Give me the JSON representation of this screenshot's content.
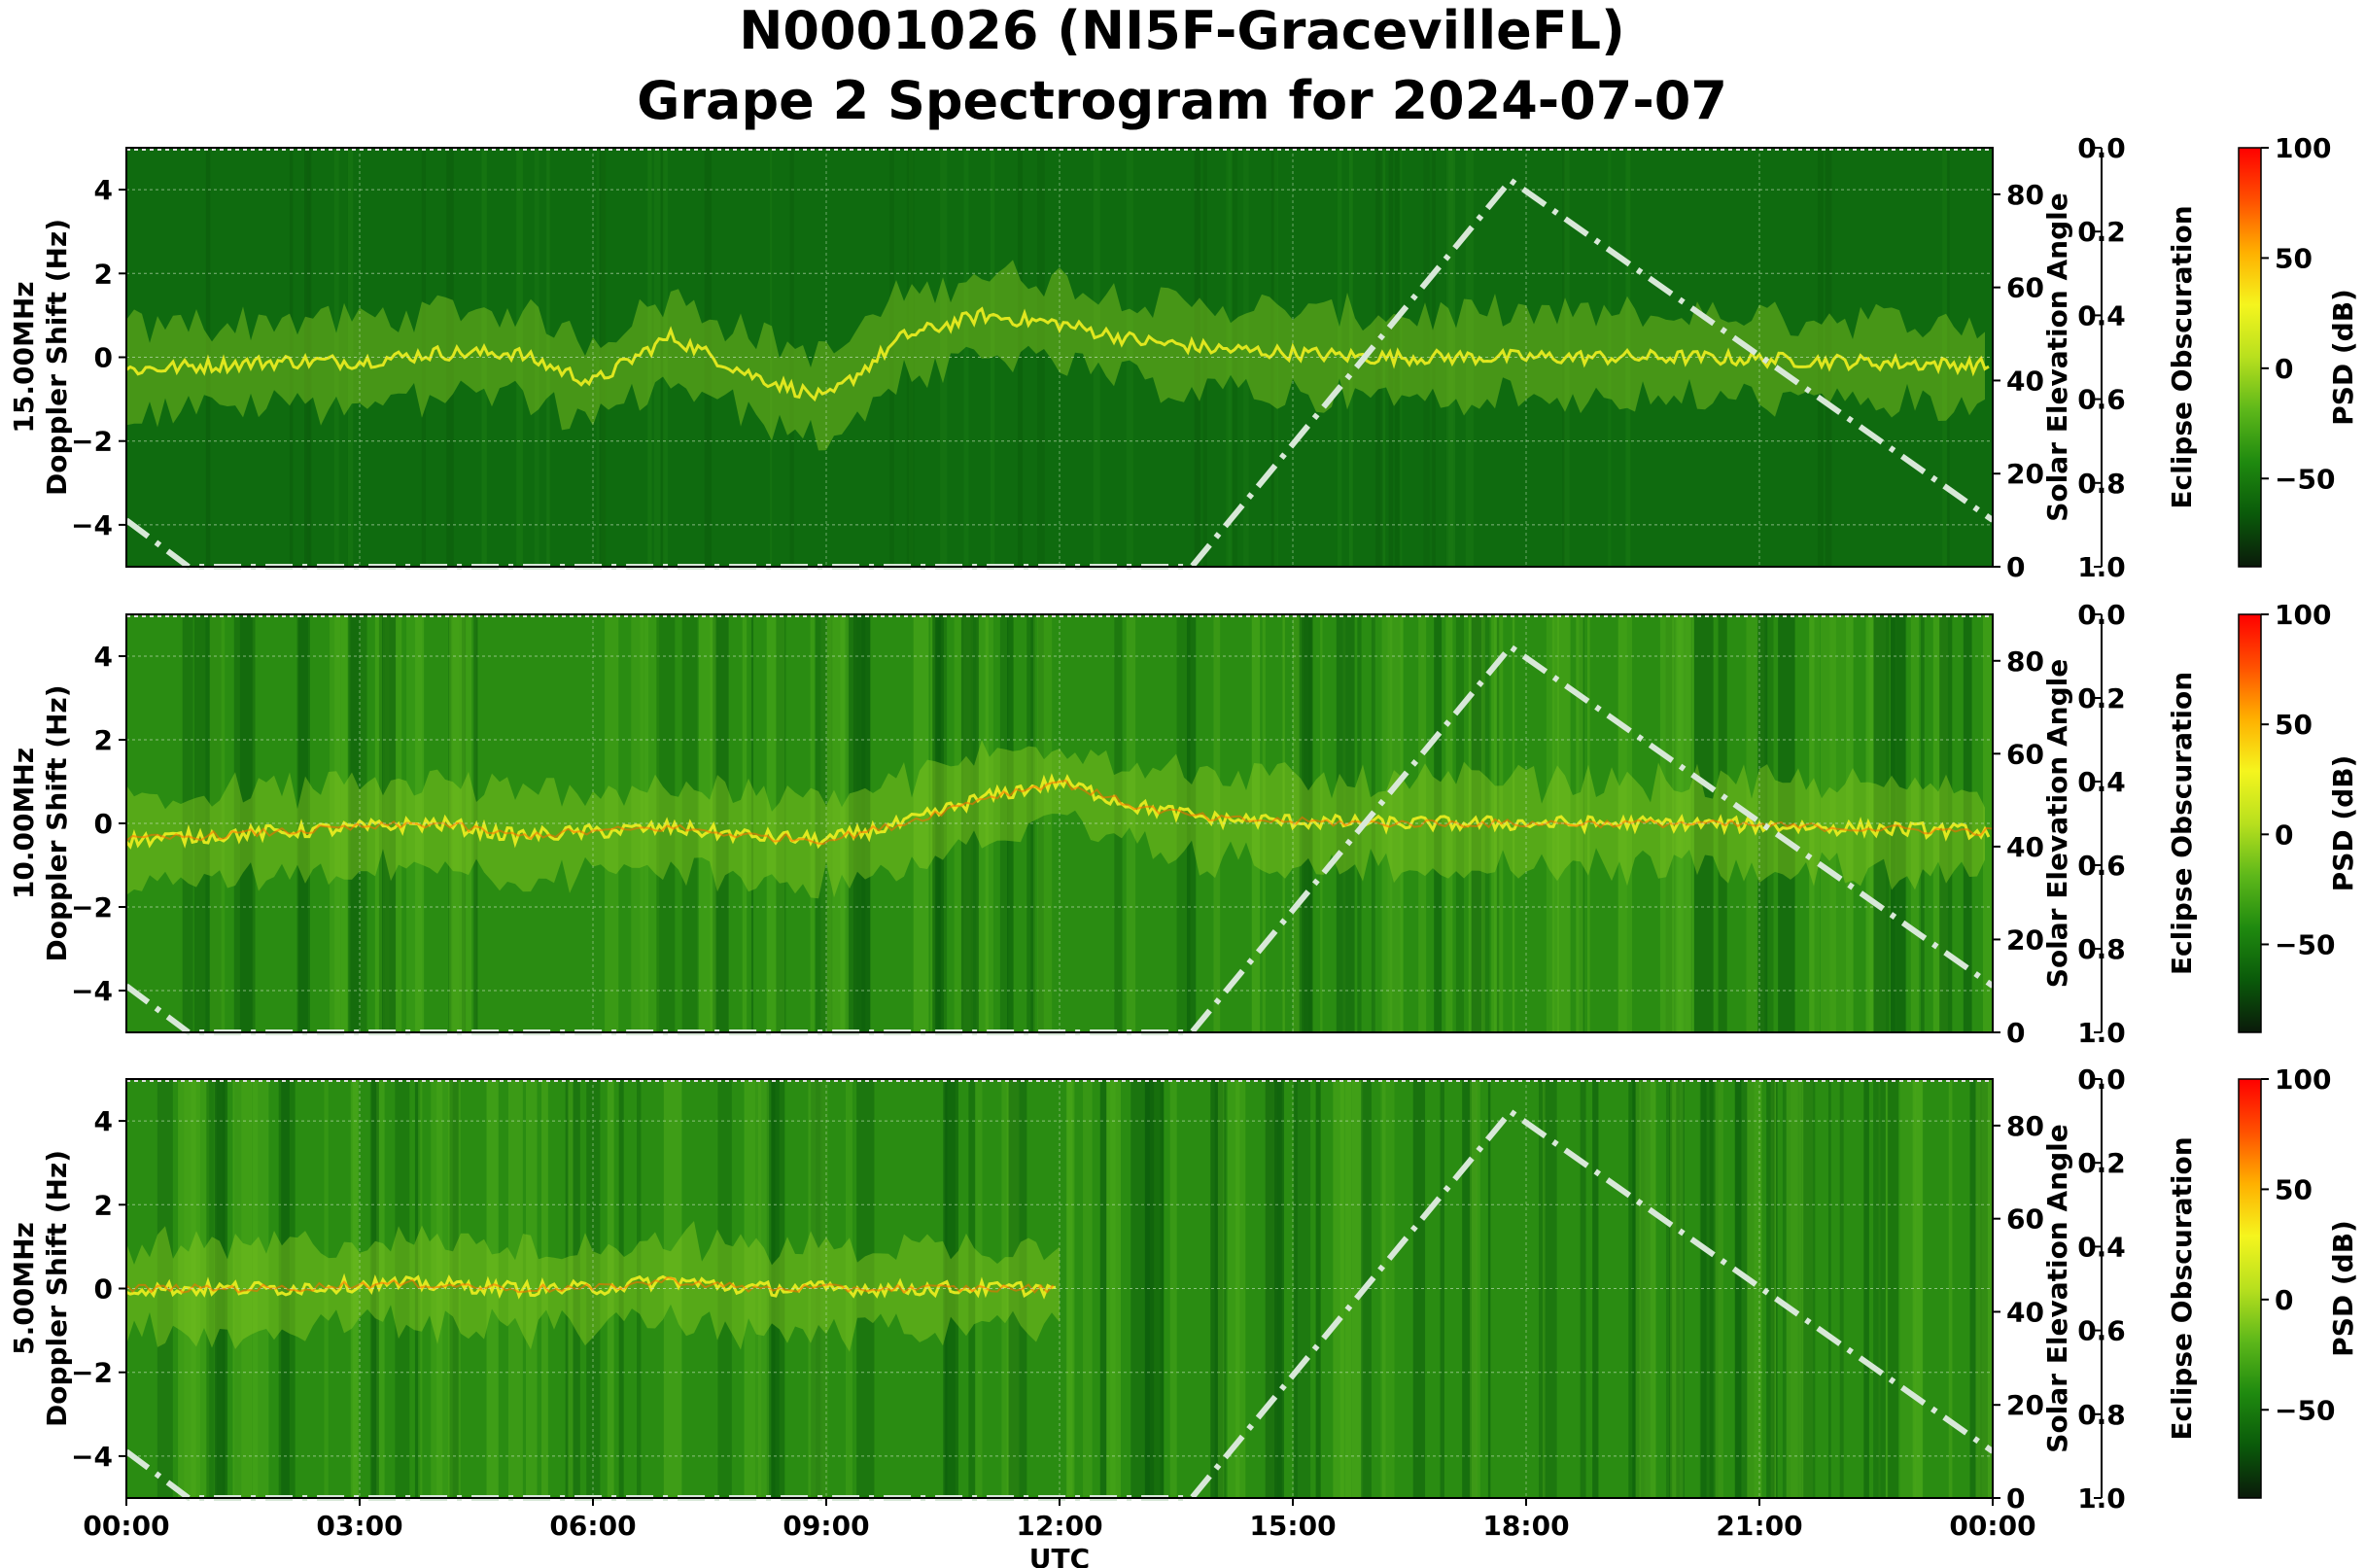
{
  "title_line1": "N0001026 (NI5F-GracevilleFL)",
  "title_line2": "Grape 2 Spectrogram for 2024-07-07",
  "x_axis": {
    "label": "UTC",
    "ticks": [
      "00:00",
      "03:00",
      "06:00",
      "09:00",
      "12:00",
      "15:00",
      "18:00",
      "21:00",
      "00:00"
    ],
    "range_hours": [
      0,
      24
    ]
  },
  "y_axis": {
    "label": "Doppler Shift (Hz)",
    "range": [
      -5,
      5
    ],
    "ticks": [
      "−4",
      "−2",
      "0",
      "2",
      "4"
    ]
  },
  "elevation_axis": {
    "label": "Solar Elevation Angle",
    "range": [
      0,
      90
    ],
    "ticks": [
      "0",
      "20",
      "40",
      "60",
      "80"
    ]
  },
  "eclipse_axis": {
    "label": "Eclipse Obscuration",
    "range": [
      0,
      1
    ],
    "ticks": [
      "0.0",
      "0.2",
      "0.4",
      "0.6",
      "0.8",
      "1.0"
    ]
  },
  "colorbar": {
    "label": "PSD (dB)",
    "range": [
      -90,
      100
    ],
    "ticks": [
      "100",
      "50",
      "0",
      "−50"
    ],
    "colors": [
      "#0a1a0a",
      "#0a5a0a",
      "#1f8a0f",
      "#5eb81a",
      "#b8e01e",
      "#f5f51e",
      "#ffb000",
      "#ff5000",
      "#ff0000"
    ]
  },
  "chart_data": [
    {
      "type": "heatmap",
      "panel_label": "15.00MHz",
      "ylabel": "Doppler Shift (Hz)",
      "xlabel": "",
      "ylim": [
        -5,
        5
      ],
      "elevation_ylim": [
        0,
        90
      ],
      "background_level": "low",
      "signal_trace_hz": [
        [
          0,
          -0.3
        ],
        [
          1,
          -0.2
        ],
        [
          2,
          -0.1
        ],
        [
          3,
          -0.1
        ],
        [
          4,
          0.1
        ],
        [
          5,
          0.1
        ],
        [
          6,
          -0.6
        ],
        [
          7,
          0.5
        ],
        [
          8,
          -0.4
        ],
        [
          9,
          -1.0
        ],
        [
          10,
          0.5
        ],
        [
          11,
          1.0
        ],
        [
          12,
          0.8
        ],
        [
          13,
          0.4
        ],
        [
          14,
          0.2
        ],
        [
          15,
          0.1
        ],
        [
          16,
          0.0
        ],
        [
          18,
          0.0
        ],
        [
          20,
          0.0
        ],
        [
          22,
          -0.1
        ],
        [
          24,
          -0.2
        ]
      ],
      "solar_elevation_deg": [
        [
          0,
          10
        ],
        [
          0.8,
          0
        ],
        [
          13.7,
          0
        ],
        [
          17.8,
          83
        ],
        [
          24,
          10
        ]
      ]
    },
    {
      "type": "heatmap",
      "panel_label": "10.00MHz",
      "ylabel": "Doppler Shift (Hz)",
      "xlabel": "",
      "ylim": [
        -5,
        5
      ],
      "elevation_ylim": [
        0,
        90
      ],
      "background_level": "medium",
      "signal_trace_hz": [
        [
          0,
          -0.4
        ],
        [
          1,
          -0.3
        ],
        [
          2,
          -0.2
        ],
        [
          3,
          -0.1
        ],
        [
          4,
          0.0
        ],
        [
          5,
          -0.3
        ],
        [
          6,
          -0.2
        ],
        [
          7,
          -0.1
        ],
        [
          8,
          -0.3
        ],
        [
          9,
          -0.4
        ],
        [
          10,
          0.0
        ],
        [
          11,
          0.6
        ],
        [
          12,
          1.0
        ],
        [
          13,
          0.4
        ],
        [
          14,
          0.1
        ],
        [
          16,
          0.0
        ],
        [
          18,
          0.0
        ],
        [
          20,
          0.0
        ],
        [
          22,
          -0.1
        ],
        [
          24,
          -0.2
        ]
      ],
      "solar_elevation_deg": [
        [
          0,
          10
        ],
        [
          0.8,
          0
        ],
        [
          13.7,
          0
        ],
        [
          17.8,
          83
        ],
        [
          24,
          10
        ]
      ]
    },
    {
      "type": "heatmap",
      "panel_label": "5.00MHz",
      "ylabel": "Doppler Shift (Hz)",
      "xlabel": "UTC",
      "ylim": [
        -5,
        5
      ],
      "elevation_ylim": [
        0,
        90
      ],
      "background_level": "medium",
      "signal_trace_hz": [
        [
          0,
          0.0
        ],
        [
          2,
          0.0
        ],
        [
          3,
          0.1
        ],
        [
          4,
          0.1
        ],
        [
          5,
          0.0
        ],
        [
          6,
          0.0
        ],
        [
          7,
          0.2
        ],
        [
          8,
          0.0
        ],
        [
          9,
          0.0
        ],
        [
          10,
          0.0
        ],
        [
          11,
          0.0
        ],
        [
          12,
          0.0
        ]
      ],
      "solar_elevation_deg": [
        [
          0,
          10
        ],
        [
          0.8,
          0
        ],
        [
          13.7,
          0
        ],
        [
          17.8,
          83
        ],
        [
          24,
          10
        ]
      ]
    }
  ]
}
